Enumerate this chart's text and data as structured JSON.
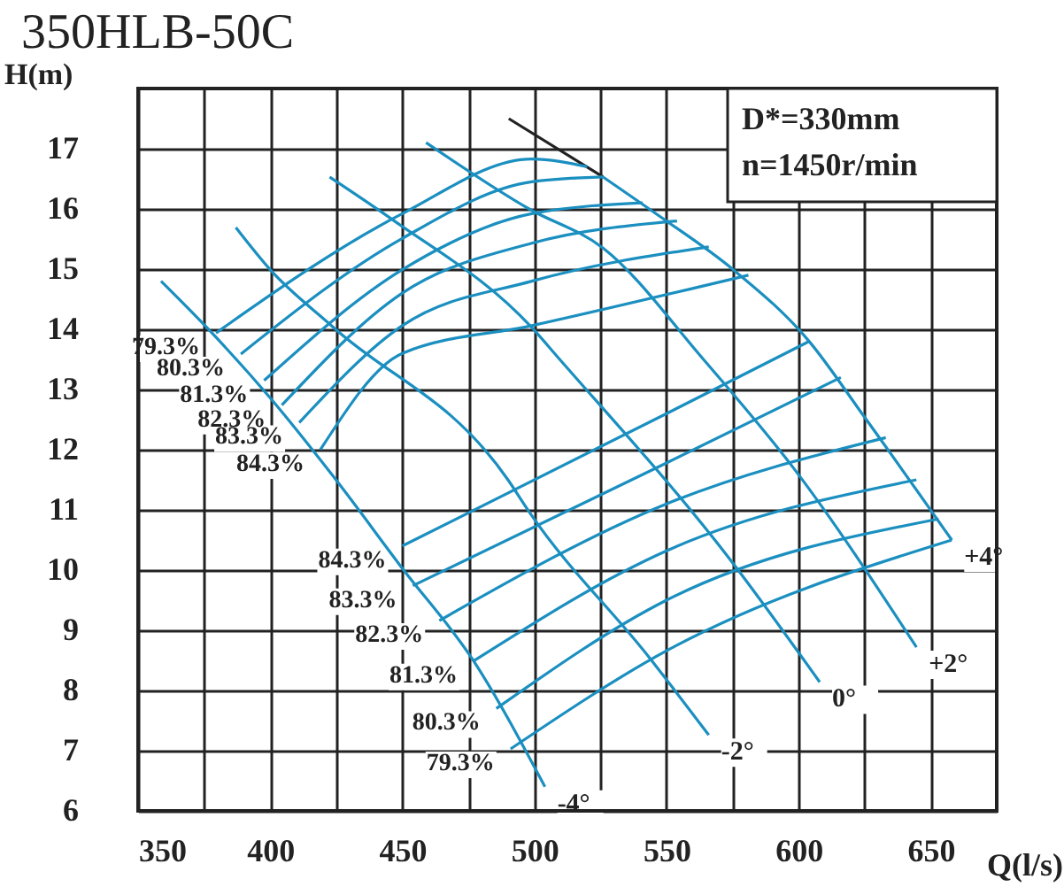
{
  "chart_data": {
    "type": "line",
    "title": "350HLB-50C",
    "xlabel": "Q(l/s)",
    "ylabel": "H(m)",
    "xlim": [
      350,
      675
    ],
    "ylim": [
      6,
      18
    ],
    "xticks": [
      350,
      {
        "value": 375,
        "label": null
      },
      400,
      {
        "value": 425,
        "label": null
      },
      450,
      {
        "value": 475,
        "label": null
      },
      500,
      {
        "value": 525,
        "label": null
      },
      550,
      {
        "value": 575,
        "label": null
      },
      600,
      {
        "value": 625,
        "label": null
      },
      650
    ],
    "yticks": [
      6,
      7,
      8,
      9,
      10,
      11,
      12,
      13,
      14,
      15,
      16,
      17
    ],
    "grid": true,
    "marker": "none",
    "line_style": "solid",
    "series": [
      {
        "color": "#1a8fc0",
        "x": [
          358.7,
          376,
          400,
          424,
          450,
          477,
          504
        ],
        "values": [
          14.8,
          14.03,
          12.86,
          11.55,
          10.03,
          8.49,
          6.4
        ]
      },
      {
        "color": "#1a8fc0",
        "x": [
          387,
          400,
          424,
          490,
          498,
          544,
          566
        ],
        "values": [
          15.69,
          14.99,
          14.03,
          11.5,
          10.97,
          8.52,
          7.26
        ]
      },
      {
        "color": "#1a8fc0",
        "x": [
          422.5,
          447,
          499,
          509,
          574,
          608
        ],
        "values": [
          16.53,
          15.8,
          14.03,
          13.53,
          10.18,
          8.14
        ]
      },
      {
        "color": "#1a8fc0",
        "x": [
          459,
          498,
          526,
          564,
          598,
          644.6
        ],
        "values": [
          17.1,
          16.0,
          15.35,
          13.5,
          11.7,
          8.72
        ]
      },
      {
        "color": "#1a8fc0",
        "x": [
          526,
          548,
          575,
          604,
          624.5,
          658
        ],
        "values": [
          16.53,
          15.86,
          15.0,
          13.8,
          12.57,
          10.5
        ]
      },
      {
        "color": "#222222",
        "x": [
          490.3,
          526
        ],
        "values": [
          17.5,
          16.53
        ]
      },
      {
        "color": "#1a8fc0",
        "x": [
          379.5,
          450,
          499,
          520
        ],
        "values": [
          13.94,
          15.92,
          16.83,
          16.7
        ]
      },
      {
        "color": "#1a8fc0",
        "x": [
          388.9,
          450,
          499,
          526
        ],
        "values": [
          13.59,
          15.51,
          16.45,
          16.53
        ]
      },
      {
        "color": "#1a8fc0",
        "x": [
          397.7,
          450,
          499,
          541
        ],
        "values": [
          13.15,
          14.99,
          15.92,
          16.1
        ]
      },
      {
        "color": "#1a8fc0",
        "x": [
          404.4,
          450,
          499,
          554
        ],
        "values": [
          12.74,
          14.6,
          15.43,
          15.8
        ]
      },
      {
        "color": "#1a8fc0",
        "x": [
          411,
          450,
          499,
          566
        ],
        "values": [
          12.45,
          14.06,
          14.8,
          15.37
        ]
      },
      {
        "color": "#1a8fc0",
        "x": [
          419,
          450,
          499,
          581
        ],
        "values": [
          12.0,
          13.6,
          14.06,
          14.9
        ]
      },
      {
        "color": "#1a8fc0",
        "x": [
          450,
          550,
          604
        ],
        "values": [
          10.4,
          12.6,
          13.8
        ]
      },
      {
        "color": "#1a8fc0",
        "x": [
          454,
          550,
          616
        ],
        "values": [
          9.74,
          11.78,
          13.2
        ]
      },
      {
        "color": "#1a8fc0",
        "x": [
          464,
          550,
          633
        ],
        "values": [
          9.16,
          11.1,
          12.2
        ]
      },
      {
        "color": "#1a8fc0",
        "x": [
          477,
          550,
          644.6
        ],
        "values": [
          8.49,
          10.32,
          11.5
        ]
      },
      {
        "color": "#1a8fc0",
        "x": [
          485.6,
          550,
          653
        ],
        "values": [
          7.7,
          9.5,
          10.85
        ]
      },
      {
        "color": "#1a8fc0",
        "x": [
          491,
          550,
          658
        ],
        "values": [
          7.03,
          8.66,
          10.5
        ]
      }
    ],
    "annotations": [
      "D*=330mm",
      "n=1450r/min",
      {
        "text": "-4°",
        "x": 504,
        "y": 6.4
      },
      {
        "text": "-2°",
        "x": 566,
        "y": 7.26
      },
      {
        "text": "0°",
        "x": 608,
        "y": 8.14
      },
      {
        "text": "+2°",
        "x": 644.6,
        "y": 8.72
      },
      {
        "text": "+4°",
        "x": 658,
        "y": 10.5
      },
      {
        "text": "79.3%",
        "x": 379.5,
        "y": 13.94
      },
      {
        "text": "80.3%",
        "x": 388.9,
        "y": 13.59
      },
      {
        "text": "81.3%",
        "x": 397.7,
        "y": 13.15
      },
      {
        "text": "82.3%",
        "x": 404.4,
        "y": 12.74
      },
      {
        "text": "83.3%",
        "x": 411,
        "y": 12.45
      },
      {
        "text": "84.3%",
        "x": 419,
        "y": 12.0
      },
      {
        "text": "84.3%",
        "x": 450,
        "y": 10.4
      },
      {
        "text": "83.3%",
        "x": 454,
        "y": 9.74
      },
      {
        "text": "82.3%",
        "x": 464,
        "y": 9.16
      },
      {
        "text": "81.3%",
        "x": 477,
        "y": 8.49
      },
      {
        "text": "80.3%",
        "x": 485.6,
        "y": 7.7
      },
      {
        "text": "79.3%",
        "x": 491,
        "y": 7.03
      }
    ]
  }
}
